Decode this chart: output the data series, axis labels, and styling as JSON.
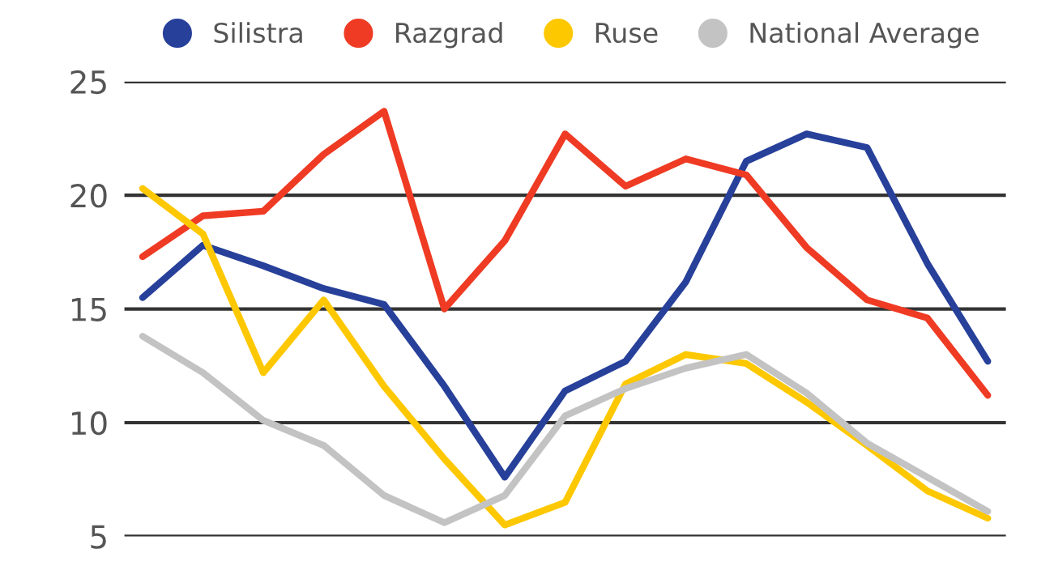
{
  "chart_data": {
    "type": "line",
    "categories": [
      null,
      null,
      null,
      null,
      null,
      null,
      null,
      null,
      null,
      null,
      null,
      null,
      null,
      null,
      null
    ],
    "series": [
      {
        "name": "Silistra",
        "color": "#27409a",
        "values": [
          15.5,
          17.8,
          16.9,
          15.9,
          15.2,
          11.6,
          7.6,
          11.4,
          12.7,
          16.2,
          21.5,
          22.7,
          22.1,
          17.0,
          12.7
        ]
      },
      {
        "name": "Razgrad",
        "color": "#ef3b24",
        "values": [
          17.3,
          19.1,
          19.3,
          21.8,
          23.7,
          15.0,
          18.0,
          22.7,
          20.4,
          21.6,
          20.9,
          17.7,
          15.4,
          14.6,
          11.2
        ]
      },
      {
        "name": "Ruse",
        "color": "#fdc800",
        "values": [
          20.3,
          18.3,
          12.2,
          15.4,
          11.6,
          8.4,
          5.5,
          6.5,
          11.7,
          13.0,
          12.6,
          10.9,
          9.0,
          7.0,
          5.8
        ]
      },
      {
        "name": "National Average",
        "color": "#c3c3c3",
        "values": [
          13.8,
          12.2,
          10.1,
          9.0,
          6.8,
          5.6,
          6.8,
          10.3,
          11.5,
          12.4,
          13.0,
          11.3,
          9.1,
          7.6,
          6.1
        ]
      }
    ],
    "ylim": [
      5,
      25
    ],
    "yticks": [
      5,
      10,
      15,
      20,
      25
    ],
    "grid": "y",
    "legend": "top",
    "tick_labels": "y",
    "line_style": "solid"
  }
}
